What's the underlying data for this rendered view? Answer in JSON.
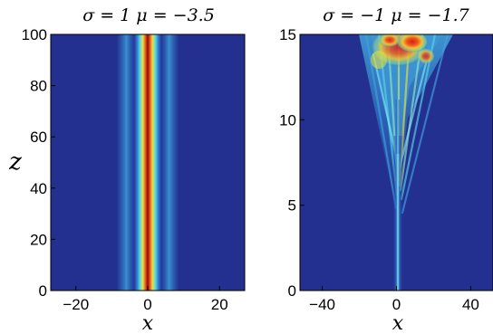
{
  "chart_data": [
    {
      "type": "heatmap",
      "title": "σ = 1    μ = −3.5",
      "xlabel": "x",
      "ylabel": "z",
      "xlim": [
        -27,
        27
      ],
      "ylim": [
        0,
        100
      ],
      "x_ticks": [
        -20,
        0,
        20
      ],
      "x_tick_labels": [
        "−20",
        "0",
        "20"
      ],
      "y_ticks": [
        0,
        20,
        40,
        60,
        80,
        100
      ],
      "y_tick_labels": [
        "0",
        "20",
        "40",
        "60",
        "80",
        "100"
      ],
      "colormap": "jet",
      "background_color": "#23308f",
      "beam_center_x": 0,
      "beam_width": 1.1,
      "sidelobe_offset": 3.0
    },
    {
      "type": "heatmap",
      "title": "σ = −1    μ = −1.7",
      "xlabel": "x",
      "ylabel": "",
      "xlim": [
        -52,
        52
      ],
      "ylim": [
        0,
        15
      ],
      "x_ticks": [
        -40,
        0,
        40
      ],
      "x_tick_labels": [
        "−40",
        "0",
        "40"
      ],
      "y_ticks": [
        0,
        5,
        10,
        15
      ],
      "y_tick_labels": [
        "0",
        "5",
        "10",
        "15"
      ],
      "colormap": "jet",
      "background_color": "#23308f",
      "beam_center_x": 0,
      "breakup_start_z": 11,
      "breakup_peak_x": 5
    }
  ]
}
